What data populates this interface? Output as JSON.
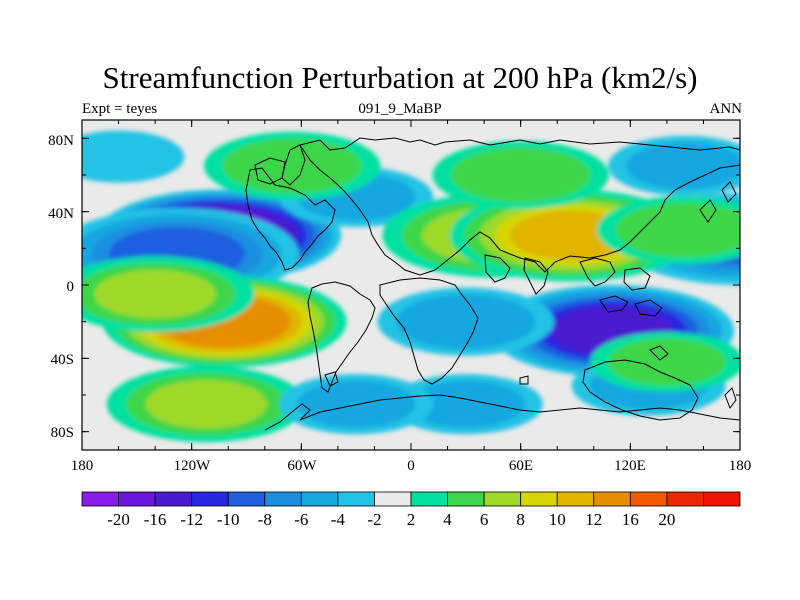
{
  "title": "Streamfunction Perturbation at 200 hPa (km2/s)",
  "left_string": "Expt = teyes",
  "center_string": "091_9_MaBP",
  "right_string": "ANN",
  "lat_labels": [
    "80N",
    "40N",
    "0",
    "40S",
    "80S"
  ],
  "lon_labels": [
    "180",
    "120W",
    "60W",
    "0",
    "60E",
    "120E",
    "180"
  ],
  "colorbar": {
    "colors": [
      "#8a1be8",
      "#6a17dc",
      "#4a1ad0",
      "#2828e0",
      "#1f5fe0",
      "#1c8ee0",
      "#18a7e0",
      "#22c3e4",
      "#eaeaea",
      "#00e0a0",
      "#3ed64a",
      "#9ed92a",
      "#d6d606",
      "#e0b400",
      "#e68e00",
      "#ef5a00",
      "#ea2800",
      "#ee1400"
    ],
    "labels": [
      "-20",
      "-16",
      "-12",
      "-10",
      "-8",
      "-6",
      "-4",
      "-2",
      "2",
      "4",
      "6",
      "8",
      "10",
      "12",
      "16",
      "20"
    ]
  },
  "chart_data": {
    "type": "heatmap",
    "title": "Streamfunction Perturbation at 200 hPa (km2/s)",
    "subtitle": "091_9_MaBP",
    "experiment": "Expt = teyes",
    "season": "ANN",
    "x_range": [
      -180,
      180
    ],
    "y_range": [
      -90,
      90
    ],
    "x_ticks": [
      "180",
      "120W",
      "60W",
      "0",
      "60E",
      "120E",
      "180"
    ],
    "y_ticks": [
      "80N",
      "40N",
      "0",
      "40S",
      "80S"
    ],
    "contour_levels": [
      -20,
      -16,
      -12,
      -10,
      -8,
      -6,
      -4,
      -2,
      2,
      4,
      6,
      8,
      10,
      12,
      16,
      20
    ],
    "features": [
      {
        "lon": -105,
        "lat": 27,
        "value": -20
      },
      {
        "lon": -128,
        "lat": 17,
        "value": -9
      },
      {
        "lon": -30,
        "lat": 48,
        "value": -4
      },
      {
        "lon": -160,
        "lat": 70,
        "value": -3
      },
      {
        "lon": 150,
        "lat": 65,
        "value": -4
      },
      {
        "lon": 180,
        "lat": 25,
        "value": -8
      },
      {
        "lon": -102,
        "lat": -20,
        "value": 15
      },
      {
        "lon": -140,
        "lat": -5,
        "value": 6
      },
      {
        "lon": -112,
        "lat": -65,
        "value": 6
      },
      {
        "lon": -65,
        "lat": 65,
        "value": 5
      },
      {
        "lon": 45,
        "lat": 27,
        "value": 7
      },
      {
        "lon": 88,
        "lat": 27,
        "value": 11
      },
      {
        "lon": 150,
        "lat": 30,
        "value": 5
      },
      {
        "lon": 60,
        "lat": 60,
        "value": 5
      },
      {
        "lon": 110,
        "lat": -25,
        "value": -14
      },
      {
        "lon": 30,
        "lat": -20,
        "value": -5
      },
      {
        "lon": 30,
        "lat": -65,
        "value": -4
      },
      {
        "lon": -30,
        "lat": -65,
        "value": -4
      },
      {
        "lon": 130,
        "lat": -55,
        "value": -4
      },
      {
        "lon": 140,
        "lat": -42,
        "value": 4
      }
    ]
  }
}
